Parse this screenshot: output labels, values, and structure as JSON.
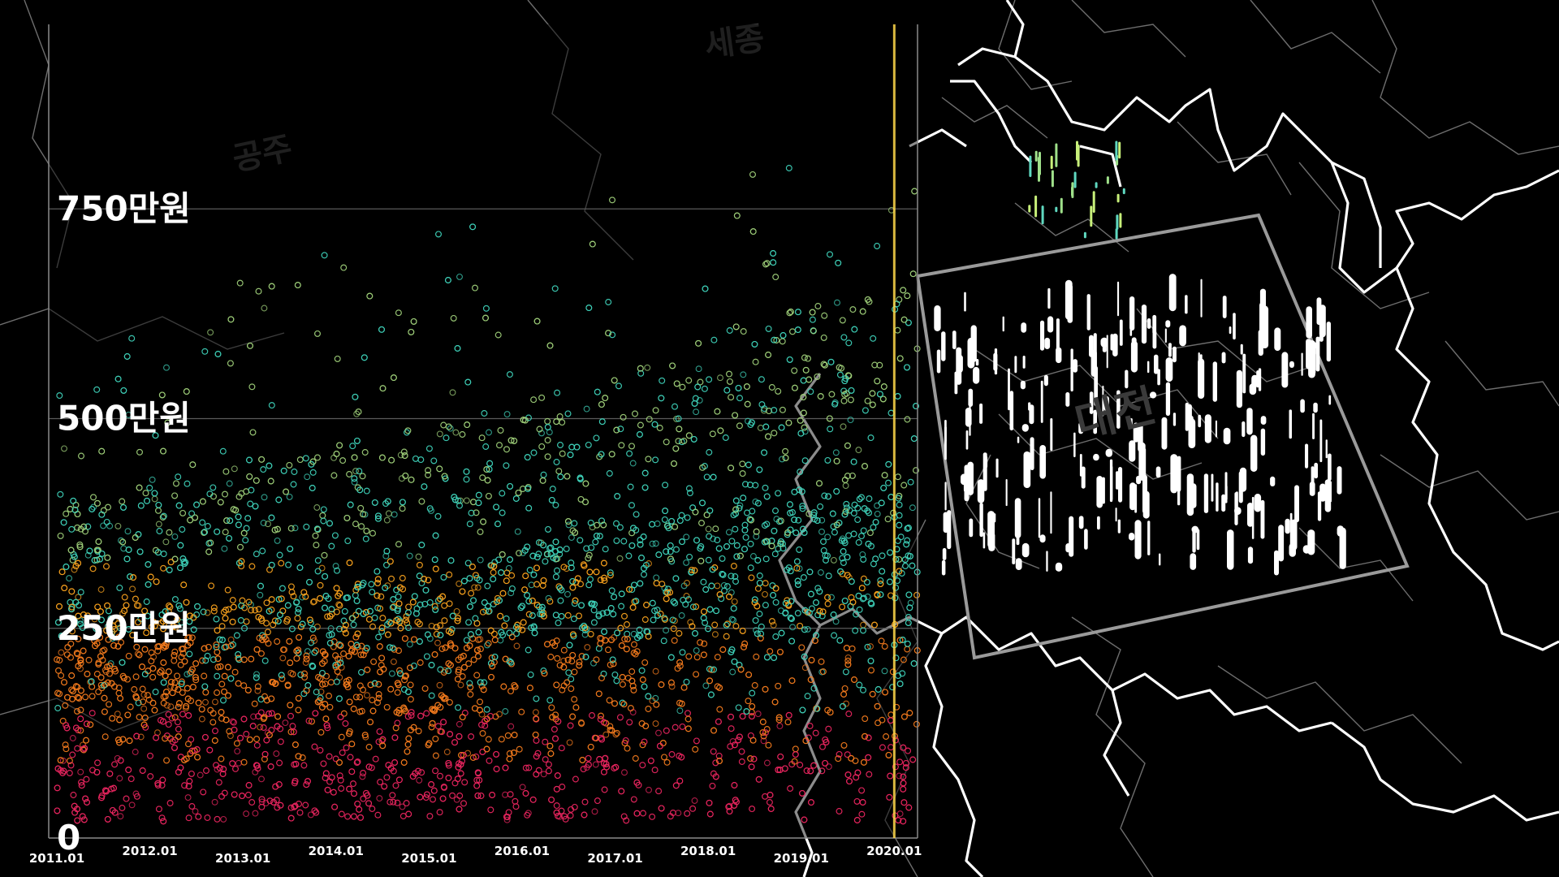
{
  "map": {
    "city_labels": {
      "sejong": "세종",
      "gongju": "공주",
      "daejeon": "대전"
    },
    "colors": {
      "background": "#000000",
      "province_border": "#ffffff",
      "district_border": "#6e6e6e",
      "selection_box": "#9a9a9a",
      "transaction_marks": "#ffffff"
    }
  },
  "chart_data": {
    "type": "scatter",
    "title": "",
    "xlabel": "",
    "ylabel": "",
    "x_ticks": [
      "2011.01",
      "2012.01",
      "2013.01",
      "2014.01",
      "2015.01",
      "2016.01",
      "2017.01",
      "2018.01",
      "2019.01",
      "2020.01"
    ],
    "xlim": [
      "2011.01",
      "2020.04"
    ],
    "y_ticks": [
      {
        "value": 0,
        "label": "0"
      },
      {
        "value": 250,
        "label": "250만원"
      },
      {
        "value": 500,
        "label": "500만원"
      },
      {
        "value": 750,
        "label": "750만원"
      }
    ],
    "ylim": [
      0,
      970
    ],
    "y_unit": "만원",
    "grid": "horizontal",
    "marker": "hollow circle",
    "current_time_marker": {
      "x": "2020.01",
      "color": "#ffd84a"
    },
    "color_scale": [
      "#e8255f",
      "#f07a1e",
      "#f5a01e",
      "#9fcf7a",
      "#3fd0b8"
    ],
    "density_bands": [
      {
        "year": 2011.0,
        "base_max": 280,
        "green_max": 400,
        "outlier_max": 620
      },
      {
        "year": 2012.0,
        "base_max": 280,
        "green_max": 420,
        "outlier_max": 660
      },
      {
        "year": 2013.0,
        "base_max": 290,
        "green_max": 450,
        "outlier_max": 690
      },
      {
        "year": 2014.0,
        "base_max": 300,
        "green_max": 470,
        "outlier_max": 700
      },
      {
        "year": 2015.0,
        "base_max": 320,
        "green_max": 490,
        "outlier_max": 720
      },
      {
        "year": 2016.0,
        "base_max": 350,
        "green_max": 520,
        "outlier_max": 740
      },
      {
        "year": 2017.0,
        "base_max": 380,
        "green_max": 560,
        "outlier_max": 770
      },
      {
        "year": 2018.0,
        "base_max": 400,
        "green_max": 600,
        "outlier_max": 790
      },
      {
        "year": 2019.0,
        "base_max": 420,
        "green_max": 640,
        "outlier_max": 810
      },
      {
        "year": 2020.25,
        "base_max": 440,
        "green_max": 660,
        "outlier_max": 830
      }
    ]
  }
}
